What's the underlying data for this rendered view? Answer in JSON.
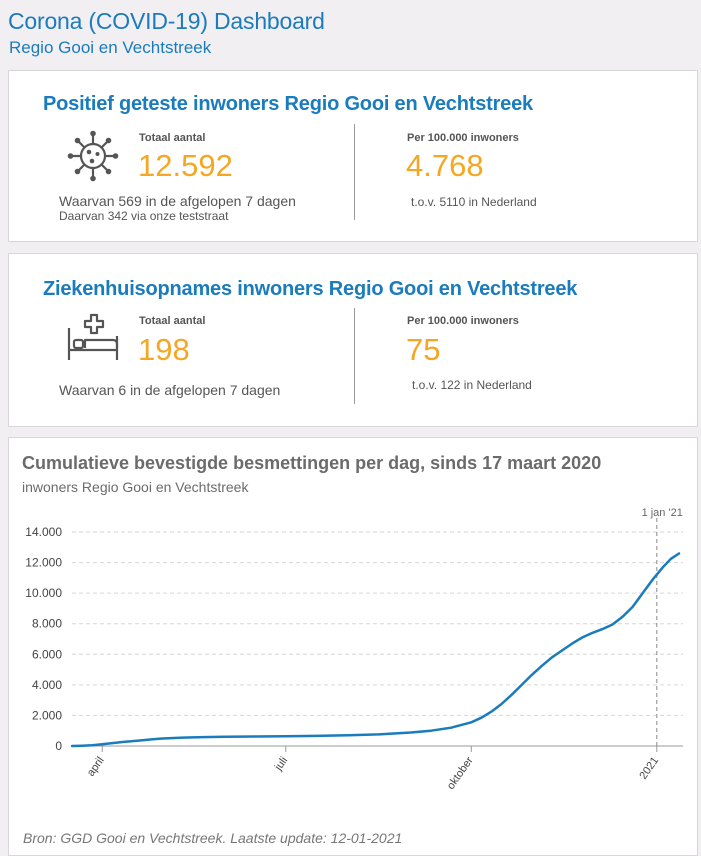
{
  "header": {
    "title": "Corona (COVID-19) Dashboard",
    "subtitle": "Regio Gooi en Vechtstreek"
  },
  "positive": {
    "title": "Positief geteste inwoners Regio Gooi en Vechtstreek",
    "icon": "virus-icon",
    "total_label": "Totaal aantal",
    "total_value": "12.592",
    "note1": "Waarvan 569 in de afgelopen 7 dagen",
    "note2": "Daarvan 342 via onze teststraat",
    "per_label": "Per 100.000 inwoners",
    "per_value": "4.768",
    "per_note": "t.o.v. 5110 in Nederland"
  },
  "hospital": {
    "title": "Ziekenhuisopnames inwoners Regio Gooi en Vechtstreek",
    "icon": "hospital-bed-icon",
    "total_label": "Totaal aantal",
    "total_value": "198",
    "note1": "Waarvan 6 in de afgelopen 7 dagen",
    "per_label": "Per 100.000 inwoners",
    "per_value": "75",
    "per_note": "t.o.v. 122 in Nederland"
  },
  "colors": {
    "accent": "#1a7bbd",
    "number": "#f5a623",
    "line": "#1a7bbd"
  },
  "chart_data": {
    "type": "line",
    "title": "Cumulatieve bevestigde besmettingen per dag, sinds 17 maart 2020",
    "subtitle": "inwoners Regio Gooi en Vechtstreek",
    "xlim": [
      "2020-03-17",
      "2021-01-12"
    ],
    "ylim": [
      0,
      14000
    ],
    "y_ticks": [
      0,
      2000,
      4000,
      6000,
      8000,
      10000,
      12000,
      14000
    ],
    "y_tick_labels": [
      "0",
      "2.000",
      "4.000",
      "6.000",
      "8.000",
      "10.000",
      "12.000",
      "14.000"
    ],
    "x_ticks": [
      {
        "date": "2020-04-01",
        "label": "april"
      },
      {
        "date": "2020-07-01",
        "label": "juli"
      },
      {
        "date": "2020-10-01",
        "label": "oktober"
      },
      {
        "date": "2021-01-01",
        "label": "2021"
      }
    ],
    "annotation": {
      "date": "2021-01-01",
      "label": "1 jan '21"
    },
    "grid": true,
    "series": [
      {
        "points": [
          [
            "2020-03-17",
            0
          ],
          [
            "2020-03-22",
            20
          ],
          [
            "2020-03-27",
            50
          ],
          [
            "2020-04-01",
            110
          ],
          [
            "2020-04-06",
            190
          ],
          [
            "2020-04-11",
            260
          ],
          [
            "2020-04-16",
            320
          ],
          [
            "2020-04-21",
            380
          ],
          [
            "2020-04-26",
            440
          ],
          [
            "2020-05-01",
            490
          ],
          [
            "2020-05-11",
            550
          ],
          [
            "2020-05-21",
            580
          ],
          [
            "2020-06-01",
            600
          ],
          [
            "2020-06-16",
            620
          ],
          [
            "2020-07-01",
            640
          ],
          [
            "2020-07-16",
            660
          ],
          [
            "2020-08-01",
            700
          ],
          [
            "2020-08-16",
            760
          ],
          [
            "2020-09-01",
            880
          ],
          [
            "2020-09-11",
            1000
          ],
          [
            "2020-09-21",
            1200
          ],
          [
            "2020-10-01",
            1550
          ],
          [
            "2020-10-06",
            1850
          ],
          [
            "2020-10-11",
            2250
          ],
          [
            "2020-10-16",
            2750
          ],
          [
            "2020-10-21",
            3350
          ],
          [
            "2020-10-26",
            4000
          ],
          [
            "2020-10-31",
            4650
          ],
          [
            "2020-11-05",
            5250
          ],
          [
            "2020-11-10",
            5800
          ],
          [
            "2020-11-15",
            6250
          ],
          [
            "2020-11-20",
            6700
          ],
          [
            "2020-11-25",
            7100
          ],
          [
            "2020-11-30",
            7400
          ],
          [
            "2020-12-05",
            7650
          ],
          [
            "2020-12-10",
            7950
          ],
          [
            "2020-12-15",
            8450
          ],
          [
            "2020-12-20",
            9100
          ],
          [
            "2020-12-25",
            10000
          ],
          [
            "2020-12-30",
            10900
          ],
          [
            "2021-01-04",
            11700
          ],
          [
            "2021-01-08",
            12250
          ],
          [
            "2021-01-12",
            12592
          ]
        ]
      }
    ],
    "source": "Bron: GGD Gooi en Vechtstreek. Laatste update: 12-01-2021"
  }
}
